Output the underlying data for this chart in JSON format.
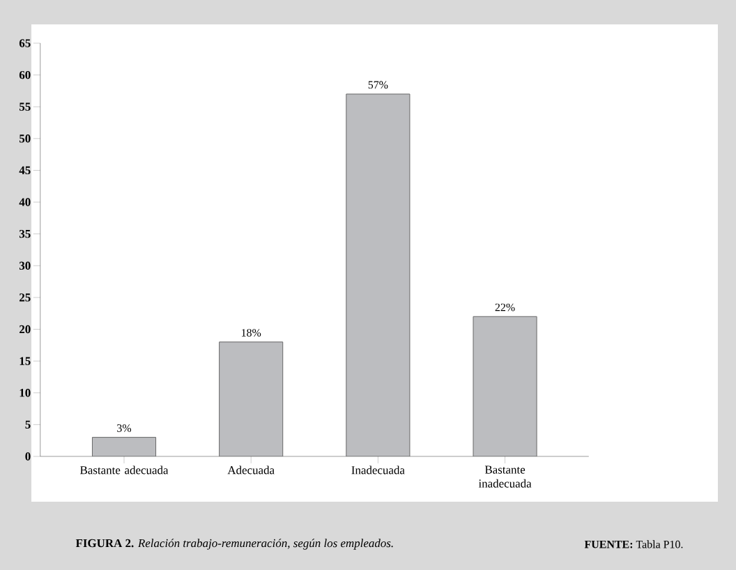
{
  "chart_data": {
    "type": "bar",
    "title": "**FIGURA 2.** *Relación trabajo-remuneración, según los empleados.*",
    "categories": [
      "Bastante adecuada",
      "Adecuada",
      "Inadecuada",
      "Bastante inadecuada"
    ],
    "values": [
      3,
      18,
      57,
      22
    ],
    "color": "#bcbdc0",
    "value_labels": [
      "3%",
      "18%",
      "57%",
      "22%"
    ],
    "ylim": [
      0,
      65
    ],
    "yticks": [
      0,
      5,
      10,
      15,
      20,
      25,
      30,
      35,
      40,
      45,
      50,
      55,
      60,
      65
    ],
    "annotations": [
      "**FUENTE:** Tabla P10."
    ]
  }
}
